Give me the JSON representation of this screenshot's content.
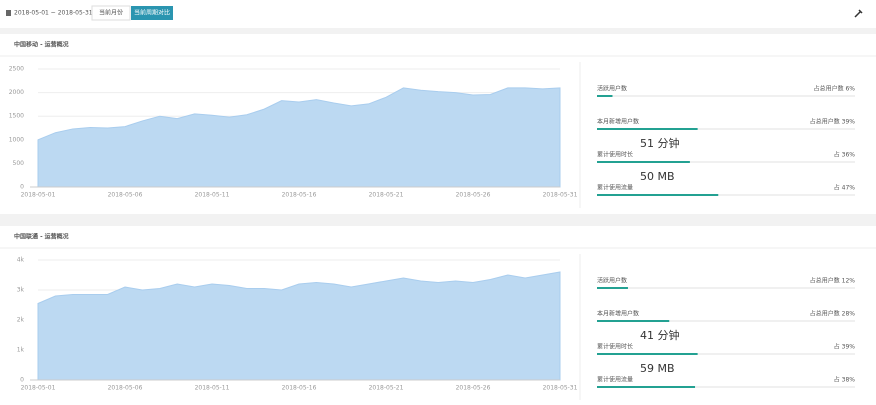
{
  "toolbar": {
    "date_range": "2018-05-01 ~ 2018-05-31",
    "buttons": [
      "当前月份",
      "当前周期对比"
    ]
  },
  "panels": [
    {
      "title": "中国移动 - 运营概况",
      "chart": {
        "type": "area",
        "color": "#bcd9f2",
        "categories": [
          "2018-05-01",
          null,
          null,
          null,
          null,
          "2018-05-06",
          null,
          null,
          null,
          null,
          "2018-05-11",
          null,
          null,
          null,
          null,
          "2018-05-16",
          null,
          null,
          null,
          null,
          "2018-05-21",
          null,
          null,
          null,
          null,
          "2018-05-26",
          null,
          null,
          null,
          null,
          "2018-05-31"
        ],
        "values": [
          1000,
          1150,
          1230,
          1260,
          1250,
          1280,
          1400,
          1500,
          1450,
          1550,
          1520,
          1480,
          1530,
          1650,
          1830,
          1800,
          1850,
          1780,
          1720,
          1760,
          1900,
          2100,
          2050,
          2020,
          2000,
          1950,
          1960,
          2100,
          2100,
          2080,
          2100
        ],
        "ylim": [
          0,
          2500
        ],
        "yticks": [
          0,
          500,
          1000,
          1500,
          2000,
          2500
        ]
      },
      "stats": [
        {
          "name": "活跃用户数",
          "share": 6,
          "share_label": "占总用户数 6%"
        },
        {
          "name": "本月新增用户数",
          "share": 39,
          "share_label": "占总用户数 39%"
        },
        {
          "name": "累计使用时长",
          "value": "51 分钟",
          "share": 36,
          "share_label": "占 36%"
        },
        {
          "name": "累计使用流量",
          "value": "50 MB",
          "share": 47,
          "share_label": "占 47%"
        }
      ]
    },
    {
      "title": "中国联通 - 运营概况",
      "chart": {
        "type": "area",
        "color": "#bcd9f2",
        "categories": [
          "2018-05-01",
          null,
          null,
          null,
          null,
          "2018-05-06",
          null,
          null,
          null,
          null,
          "2018-05-11",
          null,
          null,
          null,
          null,
          "2018-05-16",
          null,
          null,
          null,
          null,
          "2018-05-21",
          null,
          null,
          null,
          null,
          "2018-05-26",
          null,
          null,
          null,
          null,
          "2018-05-31"
        ],
        "values": [
          2550,
          2800,
          2850,
          2850,
          2850,
          3100,
          3000,
          3050,
          3200,
          3100,
          3200,
          3150,
          3050,
          3050,
          3000,
          3200,
          3250,
          3200,
          3100,
          3200,
          3300,
          3400,
          3300,
          3250,
          3300,
          3250,
          3350,
          3500,
          3400,
          3500,
          3600
        ],
        "ylim": [
          0,
          4000
        ],
        "yticks": [
          0,
          {
            "value": 1000,
            "label": "1k"
          },
          {
            "value": 2000,
            "label": "2k"
          },
          {
            "value": 3000,
            "label": "3k"
          },
          {
            "value": 4000,
            "label": "4k"
          }
        ]
      },
      "stats": [
        {
          "name": "活跃用户数",
          "share": 12,
          "share_label": "占总用户数 12%"
        },
        {
          "name": "本月新增用户数",
          "share": 28,
          "share_label": "占总用户数 28%"
        },
        {
          "name": "累计使用时长",
          "value": "41 分钟",
          "share": 39,
          "share_label": "占 39%"
        },
        {
          "name": "累计使用流量",
          "value": "59 MB",
          "share": 38,
          "share_label": "占 38%"
        }
      ]
    }
  ]
}
